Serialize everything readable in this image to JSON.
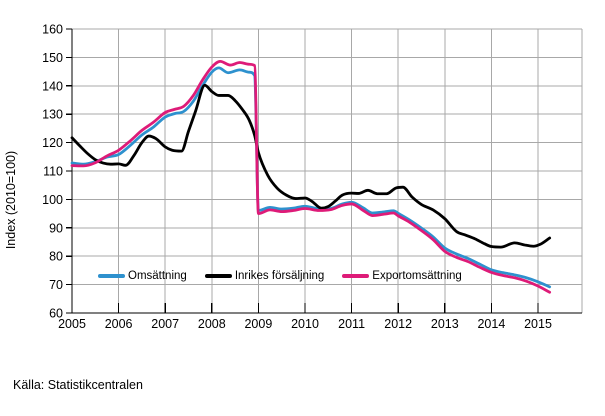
{
  "source": "Källa: Statistikcentralen",
  "colors": {
    "blue": "#2E91CE",
    "black": "#000000",
    "pink": "#DE1B78",
    "grid": "#A8A8A8"
  },
  "chart_data": {
    "type": "line",
    "title": "",
    "xlabel": "",
    "ylabel": "Index (2010=100)",
    "ylim": [
      60,
      160
    ],
    "y_ticks": [
      60,
      70,
      80,
      90,
      100,
      110,
      120,
      130,
      140,
      150,
      160
    ],
    "x_ticks": [
      2005,
      2006,
      2007,
      2008,
      2009,
      2010,
      2011,
      2012,
      2013,
      2014,
      2015
    ],
    "xlim": [
      2005,
      2015.95
    ],
    "grid": true,
    "legend_position": "bottom-inside",
    "series": [
      {
        "name": "Omsättning",
        "color": "#2E91CE",
        "points": [
          [
            2005.0,
            112.8
          ],
          [
            2005.25,
            112.4
          ],
          [
            2005.5,
            113.3
          ],
          [
            2005.75,
            114.9
          ],
          [
            2006.0,
            115.8
          ],
          [
            2006.25,
            119.0
          ],
          [
            2006.5,
            122.7
          ],
          [
            2006.75,
            125.5
          ],
          [
            2007.0,
            129.0
          ],
          [
            2007.2,
            130.2
          ],
          [
            2007.4,
            131.0
          ],
          [
            2007.6,
            134.5
          ],
          [
            2007.8,
            140.0
          ],
          [
            2008.0,
            144.8
          ],
          [
            2008.15,
            146.3
          ],
          [
            2008.35,
            144.6
          ],
          [
            2008.6,
            145.6
          ],
          [
            2008.8,
            144.8
          ],
          [
            2008.92,
            143.6
          ],
          [
            2009.0,
            96.1
          ],
          [
            2009.25,
            97.2
          ],
          [
            2009.5,
            96.6
          ],
          [
            2009.75,
            96.9
          ],
          [
            2010.0,
            97.6
          ],
          [
            2010.3,
            96.7
          ],
          [
            2010.55,
            96.8
          ],
          [
            2010.8,
            98.4
          ],
          [
            2011.0,
            99.0
          ],
          [
            2011.25,
            97.0
          ],
          [
            2011.45,
            95.2
          ],
          [
            2011.7,
            95.6
          ],
          [
            2011.9,
            96.0
          ],
          [
            2012.0,
            95.1
          ],
          [
            2012.25,
            92.7
          ],
          [
            2012.5,
            89.9
          ],
          [
            2012.75,
            86.8
          ],
          [
            2013.0,
            82.9
          ],
          [
            2013.25,
            80.8
          ],
          [
            2013.5,
            79.2
          ],
          [
            2013.75,
            77.2
          ],
          [
            2014.0,
            75.2
          ],
          [
            2014.25,
            74.2
          ],
          [
            2014.5,
            73.4
          ],
          [
            2014.75,
            72.4
          ],
          [
            2015.0,
            71.0
          ],
          [
            2015.25,
            69.2
          ]
        ]
      },
      {
        "name": "Inrikes försäljning",
        "color": "#000000",
        "points": [
          [
            2005.0,
            121.7
          ],
          [
            2005.17,
            118.8
          ],
          [
            2005.33,
            116.2
          ],
          [
            2005.5,
            114.0
          ],
          [
            2005.67,
            112.8
          ],
          [
            2005.83,
            112.4
          ],
          [
            2006.0,
            112.5
          ],
          [
            2006.15,
            112.0
          ],
          [
            2006.33,
            115.5
          ],
          [
            2006.5,
            120.0
          ],
          [
            2006.65,
            122.3
          ],
          [
            2006.8,
            121.4
          ],
          [
            2007.0,
            118.5
          ],
          [
            2007.15,
            117.3
          ],
          [
            2007.35,
            117.0
          ],
          [
            2007.5,
            124.0
          ],
          [
            2007.65,
            131.0
          ],
          [
            2007.85,
            140.2
          ],
          [
            2008.0,
            138.0
          ],
          [
            2008.15,
            136.6
          ],
          [
            2008.35,
            136.6
          ],
          [
            2008.5,
            134.8
          ],
          [
            2008.65,
            131.8
          ],
          [
            2008.8,
            128.0
          ],
          [
            2008.92,
            122.5
          ],
          [
            2009.0,
            116.5
          ],
          [
            2009.2,
            108.5
          ],
          [
            2009.4,
            104.0
          ],
          [
            2009.6,
            101.5
          ],
          [
            2009.8,
            100.3
          ],
          [
            2010.0,
            100.5
          ],
          [
            2010.15,
            99.3
          ],
          [
            2010.35,
            96.9
          ],
          [
            2010.5,
            97.5
          ],
          [
            2010.65,
            99.4
          ],
          [
            2010.8,
            101.5
          ],
          [
            2011.0,
            102.2
          ],
          [
            2011.15,
            102.1
          ],
          [
            2011.35,
            103.2
          ],
          [
            2011.55,
            102.0
          ],
          [
            2011.75,
            102.0
          ],
          [
            2011.95,
            104.0
          ],
          [
            2012.1,
            104.3
          ],
          [
            2012.3,
            100.8
          ],
          [
            2012.5,
            98.2
          ],
          [
            2012.75,
            96.3
          ],
          [
            2013.0,
            93.2
          ],
          [
            2013.25,
            88.7
          ],
          [
            2013.45,
            87.4
          ],
          [
            2013.65,
            86.1
          ],
          [
            2013.85,
            84.4
          ],
          [
            2014.0,
            83.4
          ],
          [
            2014.2,
            83.2
          ],
          [
            2014.5,
            84.7
          ],
          [
            2014.7,
            84.0
          ],
          [
            2014.9,
            83.5
          ],
          [
            2015.05,
            84.2
          ],
          [
            2015.25,
            86.4
          ]
        ]
      },
      {
        "name": "Exportomsättning",
        "color": "#DE1B78",
        "points": [
          [
            2005.0,
            111.9
          ],
          [
            2005.25,
            111.8
          ],
          [
            2005.5,
            112.9
          ],
          [
            2005.75,
            115.3
          ],
          [
            2006.0,
            117.3
          ],
          [
            2006.25,
            120.6
          ],
          [
            2006.5,
            124.3
          ],
          [
            2006.75,
            127.2
          ],
          [
            2007.0,
            130.6
          ],
          [
            2007.2,
            131.7
          ],
          [
            2007.4,
            132.8
          ],
          [
            2007.6,
            136.5
          ],
          [
            2007.8,
            142.0
          ],
          [
            2008.0,
            146.6
          ],
          [
            2008.18,
            148.6
          ],
          [
            2008.4,
            147.3
          ],
          [
            2008.6,
            148.2
          ],
          [
            2008.8,
            147.6
          ],
          [
            2008.92,
            147.1
          ],
          [
            2009.0,
            95.0
          ],
          [
            2009.25,
            96.3
          ],
          [
            2009.5,
            95.7
          ],
          [
            2009.75,
            96.1
          ],
          [
            2010.0,
            96.8
          ],
          [
            2010.3,
            96.1
          ],
          [
            2010.55,
            96.4
          ],
          [
            2010.8,
            97.9
          ],
          [
            2011.0,
            98.4
          ],
          [
            2011.25,
            96.1
          ],
          [
            2011.45,
            94.3
          ],
          [
            2011.7,
            94.8
          ],
          [
            2011.9,
            95.2
          ],
          [
            2012.0,
            94.2
          ],
          [
            2012.25,
            91.9
          ],
          [
            2012.5,
            89.0
          ],
          [
            2012.75,
            85.8
          ],
          [
            2013.0,
            81.7
          ],
          [
            2013.25,
            79.6
          ],
          [
            2013.5,
            78.1
          ],
          [
            2013.75,
            76.1
          ],
          [
            2014.0,
            74.3
          ],
          [
            2014.25,
            73.2
          ],
          [
            2014.5,
            72.4
          ],
          [
            2014.75,
            71.2
          ],
          [
            2015.0,
            69.5
          ],
          [
            2015.25,
            67.3
          ]
        ]
      }
    ]
  }
}
